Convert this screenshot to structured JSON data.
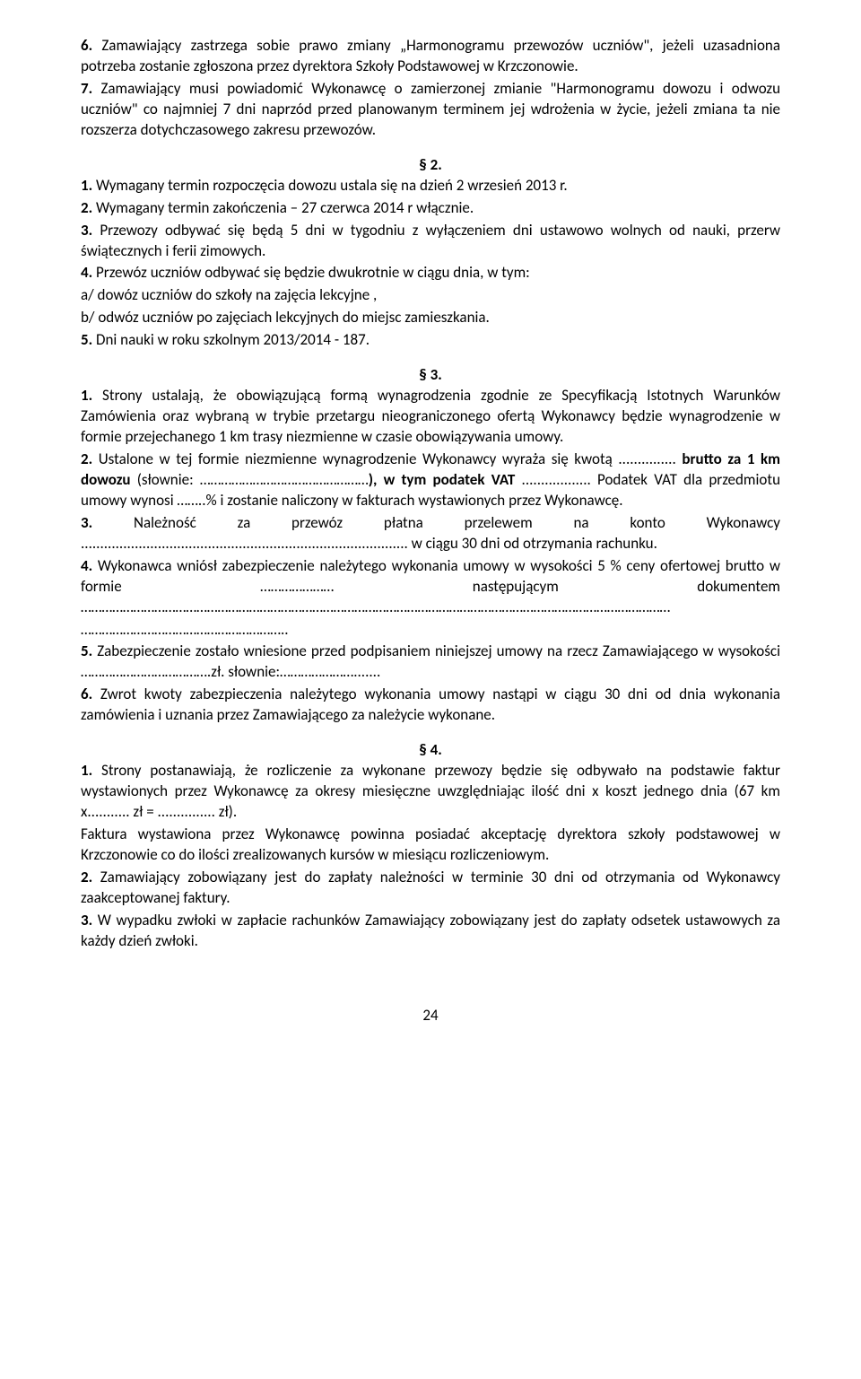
{
  "p6": {
    "num": "6.",
    "text": " Zamawiający zastrzega sobie prawo zmiany „Harmonogramu przewozów uczniów\", jeżeli uzasadniona potrzeba zostanie zgłoszona przez dyrektora Szkoły Podstawowej w Krzczonowie."
  },
  "p7": {
    "num": "7.",
    "text": " Zamawiający musi powiadomić Wykonawcę  o zamierzonej zmianie \"Harmonogramu dowozu i odwozu uczniów\" co najmniej 7 dni naprzód przed planowanym terminem jej wdrożenia w życie, jeżeli zmiana ta nie rozszerza dotychczasowego zakresu przewozów."
  },
  "s2": "§ 2.",
  "s2_1": {
    "num": "1.",
    "text": " Wymagany termin rozpoczęcia dowozu ustala się na dzień 2 wrzesień 2013 r."
  },
  "s2_2": {
    "num": "2.",
    "text": " Wymagany termin zakończenia – 27 czerwca 2014 r włącznie."
  },
  "s2_3": {
    "num": "3.",
    "text": " Przewozy odbywać się będą 5 dni w tygodniu z wyłączeniem dni ustawowo wolnych od nauki, przerw świątecznych i ferii zimowych."
  },
  "s2_4": {
    "num": "4.",
    "text": " Przewóz uczniów odbywać się będzie dwukrotnie w ciągu dnia, w tym:"
  },
  "s2_4a": "a/ dowóz uczniów do szkoły na zajęcia lekcyjne ,",
  "s2_4b": "b/ odwóz uczniów po zajęciach lekcyjnych do miejsc zamieszkania.",
  "s2_5": {
    "num": "5.",
    "text": " Dni nauki w roku szkolnym 2013/2014 - 187."
  },
  "s3": "§ 3.",
  "s3_1": {
    "num": "1.",
    "text": " Strony ustalają, że obowiązującą formą wynagrodzenia zgodnie ze Specyfikacją Istotnych Warunków Zamówienia oraz wybraną w trybie przetargu nieograniczonego ofertą Wykonawcy będzie wynagrodzenie w formie przejechanego 1 km trasy  niezmienne w czasie obowiązywania umowy."
  },
  "s3_2": {
    "num": "2.",
    "text_a": " Ustalone w tej formie niezmienne wynagrodzenie Wykonawcy wyraża się kwotą ",
    "dots_a": "...............",
    "bold_b": " brutto za 1 km dowozu",
    "text_b": " (słownie: …………………………………………",
    "bold_c": "), w tym podatek VAT ",
    "dots_c": "..................",
    "text_c": " Podatek VAT dla przedmiotu umowy wynosi ……..%                       i zostanie naliczony w fakturach wystawionych przez Wykonawcę."
  },
  "s3_3": {
    "num": "3.",
    "text_a": " Należność za przewóz płatna przelewem na konto Wykonawcy ",
    "dots_a": ".....................................................................................",
    "text_b": " w ciągu 30 dni od otrzymania rachunku."
  },
  "s3_4": {
    "num": "4.",
    "text_a": " Wykonawca wniósł zabezpieczenie należytego wykonania umowy w wysokości 5 % ceny ofertowej brutto w formie ………………… następującym dokumentem ……………………………………………………………………………………………………………………………………………………"
  },
  "s3_4_line2": "…………………………………………………..",
  "s3_5": {
    "num": "5.",
    "text": " Zabezpieczenie zostało wniesione przed podpisaniem niniejszej umowy na rzecz Zamawiającego w wysokości ……………………………….zł. słownie:…………………......."
  },
  "s3_6": {
    "num": "6.",
    "text": " Zwrot kwoty zabezpieczenia należytego wykonania umowy nastąpi w ciągu 30 dni od dnia wykonania zamówienia i uznania przez Zamawiającego za należycie wykonane."
  },
  "s4": "§ 4.",
  "s4_1": {
    "num": "1.",
    "text_a": " Strony postanawiają, że rozliczenie za wykonane przewozy będzie się odbywało na podstawie faktur wystawionych przez Wykonawcę za okresy miesięczne uwzględniając ilość dni x koszt jednego dnia (67 km x",
    "dots_a": "...........",
    "text_b": "  zł = ",
    "dots_b": "...............",
    "text_c": " zł)."
  },
  "s4_1b": "Faktura wystawiona przez Wykonawcę powinna posiadać akceptację dyrektora szkoły podstawowej w Krzczonowie co do ilości zrealizowanych kursów w miesiącu rozliczeniowym.",
  "s4_2": {
    "num": "2.",
    "text": " Zamawiający zobowiązany jest do zapłaty należności w terminie 30 dni od otrzymania od Wykonawcy zaakceptowanej faktury."
  },
  "s4_3": {
    "num": "3.",
    "text": " W wypadku zwłoki w zapłacie rachunków Zamawiający zobowiązany jest do zapłaty odsetek ustawowych za każdy dzień zwłoki."
  },
  "pagenum": "24"
}
